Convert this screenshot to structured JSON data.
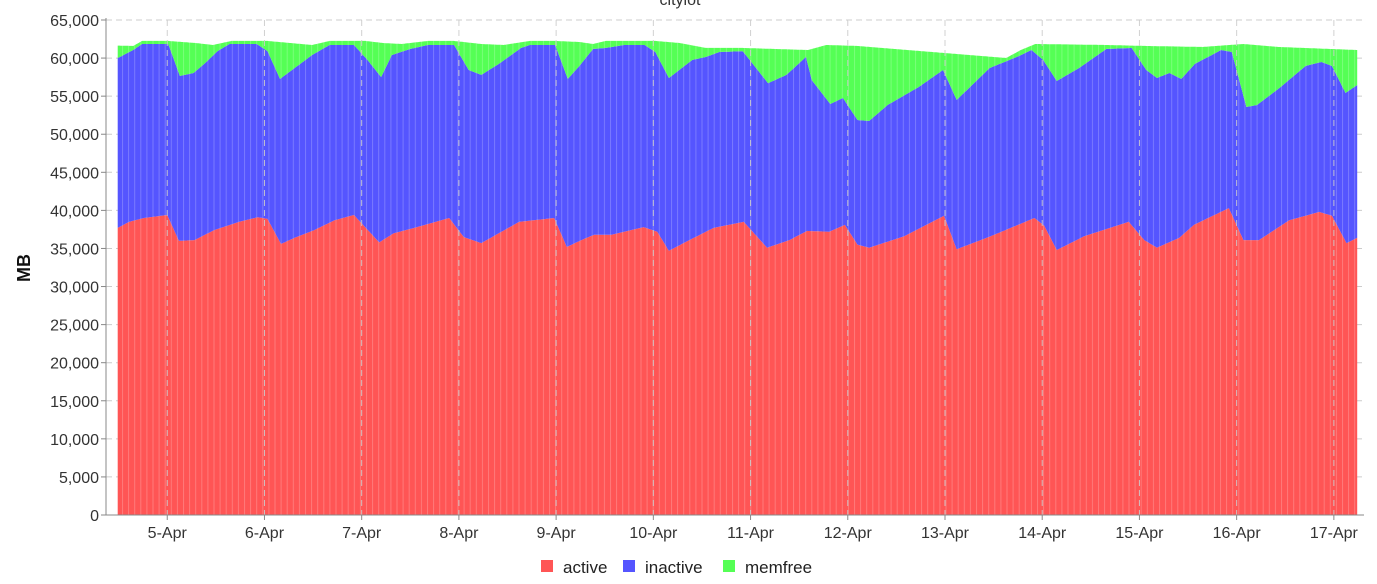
{
  "chart_data": {
    "type": "area",
    "stacked": true,
    "stack_values_are_cumulative_tops": true,
    "title": "cityiot",
    "xlabel": "",
    "ylabel": "MB",
    "x_unit": "day of April (fractional)",
    "xlim": [
      4.37,
      17.31
    ],
    "ylim": [
      0,
      65000
    ],
    "yticks": [
      0,
      5000,
      10000,
      15000,
      20000,
      25000,
      30000,
      35000,
      40000,
      45000,
      50000,
      55000,
      60000,
      65000
    ],
    "ytick_labels": [
      "0",
      "5,000",
      "10,000",
      "15,000",
      "20,000",
      "25,000",
      "30,000",
      "35,000",
      "40,000",
      "45,000",
      "50,000",
      "55,000",
      "60,000",
      "65,000"
    ],
    "xticks": [
      5,
      6,
      7,
      8,
      9,
      10,
      11,
      12,
      13,
      14,
      15,
      16,
      17
    ],
    "xtick_labels": [
      "5-Apr",
      "6-Apr",
      "7-Apr",
      "8-Apr",
      "9-Apr",
      "10-Apr",
      "11-Apr",
      "12-Apr",
      "13-Apr",
      "14-Apr",
      "15-Apr",
      "16-Apr",
      "17-Apr"
    ],
    "grid": true,
    "legend_position": "bottom-center",
    "series": [
      {
        "name": "active",
        "color": "#ff5555",
        "points": [
          [
            4.49,
            37700
          ],
          [
            4.61,
            38500
          ],
          [
            4.76,
            39000
          ],
          [
            5.0,
            39400
          ],
          [
            5.12,
            36000
          ],
          [
            5.28,
            36100
          ],
          [
            5.48,
            37400
          ],
          [
            5.74,
            38500
          ],
          [
            5.93,
            39100
          ],
          [
            6.03,
            38900
          ],
          [
            6.17,
            35600
          ],
          [
            6.31,
            36400
          ],
          [
            6.51,
            37400
          ],
          [
            6.72,
            38700
          ],
          [
            6.92,
            39400
          ],
          [
            7.18,
            35800
          ],
          [
            7.33,
            37000
          ],
          [
            7.54,
            37700
          ],
          [
            7.9,
            39000
          ],
          [
            8.05,
            36500
          ],
          [
            8.23,
            35700
          ],
          [
            8.62,
            38500
          ],
          [
            8.98,
            39000
          ],
          [
            9.11,
            35200
          ],
          [
            9.26,
            36100
          ],
          [
            9.39,
            36800
          ],
          [
            9.57,
            36800
          ],
          [
            9.9,
            37800
          ],
          [
            10.04,
            37200
          ],
          [
            10.16,
            34700
          ],
          [
            10.37,
            36100
          ],
          [
            10.62,
            37700
          ],
          [
            10.93,
            38500
          ],
          [
            11.17,
            35100
          ],
          [
            11.4,
            36100
          ],
          [
            11.58,
            37300
          ],
          [
            11.81,
            37200
          ],
          [
            11.97,
            38100
          ],
          [
            12.1,
            35500
          ],
          [
            12.22,
            35100
          ],
          [
            12.58,
            36600
          ],
          [
            12.99,
            39300
          ],
          [
            13.12,
            34900
          ],
          [
            13.45,
            36500
          ],
          [
            13.92,
            39000
          ],
          [
            14.02,
            38000
          ],
          [
            14.15,
            34800
          ],
          [
            14.43,
            36600
          ],
          [
            14.89,
            38500
          ],
          [
            15.05,
            36100
          ],
          [
            15.18,
            35100
          ],
          [
            15.41,
            36400
          ],
          [
            15.56,
            38100
          ],
          [
            15.92,
            40300
          ],
          [
            16.07,
            36100
          ],
          [
            16.23,
            36100
          ],
          [
            16.54,
            38700
          ],
          [
            16.85,
            39800
          ],
          [
            16.98,
            39300
          ],
          [
            17.13,
            35700
          ],
          [
            17.24,
            36400
          ]
        ]
      },
      {
        "name": "inactive",
        "color": "#5555ff",
        "points": [
          [
            4.49,
            60000
          ],
          [
            4.65,
            61060
          ],
          [
            4.74,
            61850
          ],
          [
            5.01,
            61850
          ],
          [
            5.13,
            57650
          ],
          [
            5.27,
            58040
          ],
          [
            5.38,
            59230
          ],
          [
            5.52,
            60930
          ],
          [
            5.64,
            61850
          ],
          [
            5.92,
            61850
          ],
          [
            6.03,
            60930
          ],
          [
            6.16,
            57260
          ],
          [
            6.49,
            60400
          ],
          [
            6.67,
            61720
          ],
          [
            6.92,
            61720
          ],
          [
            7.06,
            59750
          ],
          [
            7.2,
            57500
          ],
          [
            7.31,
            60400
          ],
          [
            7.5,
            61200
          ],
          [
            7.68,
            61720
          ],
          [
            7.95,
            61720
          ],
          [
            8.1,
            58440
          ],
          [
            8.23,
            57790
          ],
          [
            8.41,
            59230
          ],
          [
            8.64,
            61330
          ],
          [
            8.73,
            61720
          ],
          [
            8.99,
            61720
          ],
          [
            9.12,
            57260
          ],
          [
            9.24,
            58970
          ],
          [
            9.38,
            61200
          ],
          [
            9.51,
            61330
          ],
          [
            9.7,
            61720
          ],
          [
            9.91,
            61720
          ],
          [
            10.02,
            60800
          ],
          [
            10.16,
            57390
          ],
          [
            10.4,
            59750
          ],
          [
            10.54,
            60150
          ],
          [
            10.68,
            60800
          ],
          [
            10.92,
            60900
          ],
          [
            11.18,
            56700
          ],
          [
            11.37,
            57800
          ],
          [
            11.57,
            60150
          ],
          [
            11.63,
            57100
          ],
          [
            11.82,
            53970
          ],
          [
            11.95,
            54760
          ],
          [
            12.1,
            51870
          ],
          [
            12.22,
            51740
          ],
          [
            12.41,
            53840
          ],
          [
            12.73,
            56200
          ],
          [
            12.98,
            58440
          ],
          [
            13.12,
            54500
          ],
          [
            13.46,
            58700
          ],
          [
            13.74,
            60150
          ],
          [
            13.89,
            61060
          ],
          [
            14.01,
            59750
          ],
          [
            14.15,
            56990
          ],
          [
            14.38,
            58700
          ],
          [
            14.66,
            61200
          ],
          [
            14.92,
            61330
          ],
          [
            15.07,
            58440
          ],
          [
            15.18,
            57390
          ],
          [
            15.31,
            58040
          ],
          [
            15.43,
            57260
          ],
          [
            15.57,
            59230
          ],
          [
            15.84,
            61060
          ],
          [
            15.95,
            60800
          ],
          [
            16.1,
            53580
          ],
          [
            16.21,
            53840
          ],
          [
            16.44,
            56070
          ],
          [
            16.71,
            58970
          ],
          [
            16.87,
            59490
          ],
          [
            16.98,
            58970
          ],
          [
            17.12,
            55420
          ],
          [
            17.24,
            56460
          ]
        ]
      },
      {
        "name": "memfree",
        "color": "#55ff55",
        "points": [
          [
            4.49,
            61640
          ],
          [
            4.65,
            61590
          ],
          [
            4.74,
            62250
          ],
          [
            5.01,
            62250
          ],
          [
            5.29,
            61980
          ],
          [
            5.47,
            61720
          ],
          [
            5.66,
            62250
          ],
          [
            6.03,
            62250
          ],
          [
            6.49,
            61720
          ],
          [
            6.67,
            62250
          ],
          [
            7.04,
            62250
          ],
          [
            7.22,
            61980
          ],
          [
            7.41,
            61850
          ],
          [
            7.68,
            62250
          ],
          [
            7.95,
            62250
          ],
          [
            8.23,
            61850
          ],
          [
            8.46,
            61720
          ],
          [
            8.73,
            62250
          ],
          [
            8.99,
            62250
          ],
          [
            9.24,
            62110
          ],
          [
            9.38,
            61850
          ],
          [
            9.51,
            62250
          ],
          [
            10.02,
            62250
          ],
          [
            10.27,
            61980
          ],
          [
            10.54,
            61330
          ],
          [
            10.92,
            61330
          ],
          [
            11.59,
            61060
          ],
          [
            11.78,
            61720
          ],
          [
            12.1,
            61590
          ],
          [
            13.63,
            60010
          ],
          [
            13.78,
            61060
          ],
          [
            13.93,
            61850
          ],
          [
            14.66,
            61720
          ],
          [
            15.07,
            61590
          ],
          [
            15.65,
            61460
          ],
          [
            16.07,
            61850
          ],
          [
            16.43,
            61460
          ],
          [
            17.24,
            61060
          ]
        ]
      }
    ]
  }
}
